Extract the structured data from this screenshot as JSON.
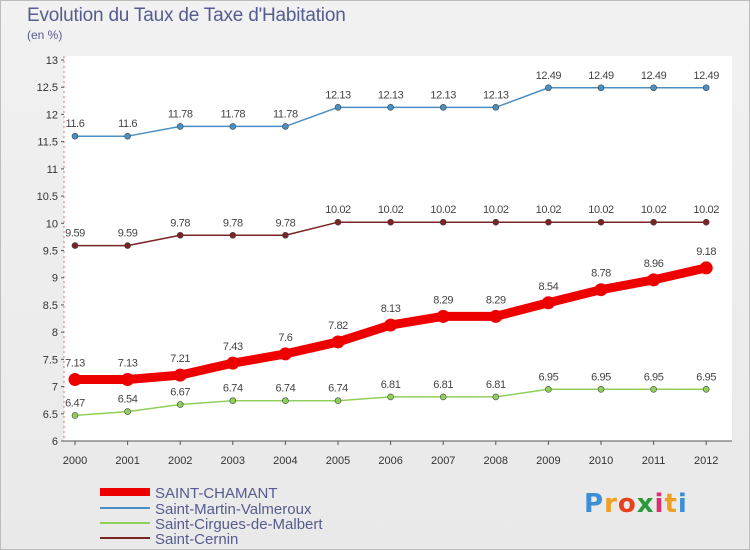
{
  "chart_title": "Evolution du Taux de Taxe d'Habitation",
  "chart_unit": "(en %)",
  "brand": {
    "letters": [
      "P",
      "r",
      "o",
      "x",
      "i",
      "t",
      "i"
    ],
    "letter_colors": [
      "#3a8fd8",
      "#f0a020",
      "#e8401c",
      "#2a9a3a",
      "#d83070",
      "#f0a020",
      "#3a8fd8"
    ]
  },
  "chart_data": {
    "type": "line",
    "title": "Evolution du Taux de Taxe d'Habitation",
    "subtitle": "(en %)",
    "x": [
      "2000",
      "2001",
      "2002",
      "2003",
      "2004",
      "2005",
      "2006",
      "2007",
      "2008",
      "2009",
      "2010",
      "2011",
      "2012"
    ],
    "ylim": [
      6,
      13
    ],
    "yticks": [
      "6",
      "6.5",
      "7",
      "7.5",
      "8",
      "8.5",
      "9",
      "9.5",
      "10",
      "10.5",
      "11",
      "11.5",
      "12",
      "12.5",
      "13"
    ],
    "grid": false,
    "legend_position": "bottom-left",
    "series": [
      {
        "name": "SAINT-CHAMANT",
        "color": "#ee0000",
        "emphasis": true,
        "values": [
          7.13,
          7.13,
          7.21,
          7.43,
          7.6,
          7.82,
          8.13,
          8.29,
          8.29,
          8.54,
          8.78,
          8.96,
          9.18
        ],
        "labels": [
          "7.13",
          "7.13",
          "7.21",
          "7.43",
          "7.6",
          "7.82",
          "8.13",
          "8.29",
          "8.29",
          "8.54",
          "8.78",
          "8.96",
          "9.18"
        ]
      },
      {
        "name": "Saint-Martin-Valmeroux",
        "color": "#4a8fc4",
        "emphasis": false,
        "values": [
          11.6,
          11.6,
          11.78,
          11.78,
          11.78,
          12.13,
          12.13,
          12.13,
          12.13,
          12.49,
          12.49,
          12.49,
          12.49
        ],
        "labels": [
          "11.6",
          "11.6",
          "11.78",
          "11.78",
          "11.78",
          "12.13",
          "12.13",
          "12.13",
          "12.13",
          "12.49",
          "12.49",
          "12.49",
          "12.49"
        ]
      },
      {
        "name": "Saint-Cirgues-de-Malbert",
        "color": "#8fcf5a",
        "emphasis": false,
        "values": [
          6.47,
          6.54,
          6.67,
          6.74,
          6.74,
          6.74,
          6.81,
          6.81,
          6.81,
          6.95,
          6.95,
          6.95,
          6.95
        ],
        "labels": [
          "6.47",
          "6.54",
          "6.67",
          "6.74",
          "6.74",
          "6.74",
          "6.81",
          "6.81",
          "6.81",
          "6.95",
          "6.95",
          "6.95",
          "6.95"
        ]
      },
      {
        "name": "Saint-Cernin",
        "color": "#7a2424",
        "emphasis": false,
        "values": [
          9.59,
          9.59,
          9.78,
          9.78,
          9.78,
          10.02,
          10.02,
          10.02,
          10.02,
          10.02,
          10.02,
          10.02,
          10.02
        ],
        "labels": [
          "9.59",
          "9.59",
          "9.78",
          "9.78",
          "9.78",
          "10.02",
          "10.02",
          "10.02",
          "10.02",
          "10.02",
          "10.02",
          "10.02",
          "10.02"
        ]
      }
    ]
  }
}
